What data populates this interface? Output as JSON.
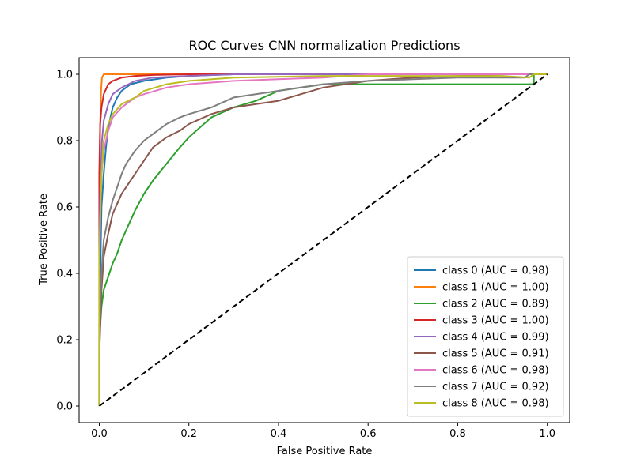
{
  "chart_data": {
    "type": "line",
    "title": "ROC Curves CNN normalization Predictions",
    "xlabel": "False Positive Rate",
    "ylabel": "True Positive Rate",
    "xlim": [
      -0.045,
      1.05
    ],
    "ylim": [
      -0.05,
      1.05
    ],
    "xticks": [
      0.0,
      0.2,
      0.4,
      0.6,
      0.8,
      1.0
    ],
    "xtick_labels": [
      "0.0",
      "0.2",
      "0.4",
      "0.6",
      "0.8",
      "1.0"
    ],
    "yticks": [
      0.0,
      0.2,
      0.4,
      0.6,
      0.8,
      1.0
    ],
    "ytick_labels": [
      "0.0",
      "0.2",
      "0.4",
      "0.6",
      "0.8",
      "1.0"
    ],
    "grid": false,
    "legend_position": "lower-right",
    "reference_line": {
      "label": "",
      "style": "dashed",
      "color": "#000000",
      "x": [
        0,
        1
      ],
      "y": [
        0,
        1
      ]
    },
    "series": [
      {
        "name": "class 0 (AUC = 0.98)",
        "color": "#1f77b4",
        "x": [
          0,
          0.0,
          0.003,
          0.005,
          0.01,
          0.015,
          0.02,
          0.03,
          0.04,
          0.05,
          0.07,
          0.1,
          0.15,
          0.2,
          0.3,
          0.5,
          1.0
        ],
        "y": [
          0,
          0.25,
          0.45,
          0.6,
          0.7,
          0.78,
          0.84,
          0.9,
          0.93,
          0.95,
          0.97,
          0.98,
          0.99,
          0.995,
          1.0,
          1.0,
          1.0
        ]
      },
      {
        "name": "class 1 (AUC = 1.00)",
        "color": "#ff7f0e",
        "x": [
          0,
          0.0,
          0.002,
          0.004,
          0.006,
          0.01,
          0.5,
          1.0
        ],
        "y": [
          0,
          0.6,
          0.85,
          0.95,
          0.99,
          1.0,
          1.0,
          1.0
        ]
      },
      {
        "name": "class 2 (AUC = 0.89)",
        "color": "#2ca02c",
        "x": [
          0,
          0.0,
          0.005,
          0.01,
          0.02,
          0.03,
          0.04,
          0.05,
          0.06,
          0.07,
          0.08,
          0.1,
          0.12,
          0.15,
          0.18,
          0.2,
          0.25,
          0.3,
          0.35,
          0.4,
          0.5,
          0.6,
          0.7,
          0.8,
          0.9,
          0.96,
          0.97,
          0.97,
          1.0
        ],
        "y": [
          0,
          0.2,
          0.3,
          0.35,
          0.39,
          0.43,
          0.46,
          0.5,
          0.53,
          0.56,
          0.59,
          0.64,
          0.68,
          0.73,
          0.78,
          0.81,
          0.87,
          0.9,
          0.92,
          0.95,
          0.97,
          0.97,
          0.97,
          0.97,
          0.97,
          0.97,
          0.97,
          1.0,
          1.0
        ]
      },
      {
        "name": "class 3 (AUC = 1.00)",
        "color": "#d62728",
        "x": [
          0,
          0.0,
          0.002,
          0.005,
          0.01,
          0.02,
          0.03,
          0.05,
          0.08,
          0.12,
          0.2,
          0.5,
          1.0
        ],
        "y": [
          0,
          0.7,
          0.85,
          0.9,
          0.94,
          0.97,
          0.98,
          0.99,
          0.995,
          0.998,
          1.0,
          1.0,
          1.0
        ]
      },
      {
        "name": "class 4 (AUC = 0.99)",
        "color": "#9467bd",
        "x": [
          0,
          0.0,
          0.003,
          0.006,
          0.01,
          0.02,
          0.03,
          0.05,
          0.08,
          0.12,
          0.2,
          0.3,
          0.5,
          1.0
        ],
        "y": [
          0,
          0.5,
          0.7,
          0.8,
          0.86,
          0.91,
          0.94,
          0.96,
          0.98,
          0.99,
          0.995,
          1.0,
          1.0,
          1.0
        ]
      },
      {
        "name": "class 5 (AUC = 0.91)",
        "color": "#8c564b",
        "x": [
          0,
          0.0,
          0.005,
          0.01,
          0.02,
          0.03,
          0.04,
          0.05,
          0.06,
          0.08,
          0.1,
          0.12,
          0.15,
          0.18,
          0.2,
          0.25,
          0.3,
          0.35,
          0.4,
          0.45,
          0.5,
          0.6,
          0.7,
          0.8,
          0.9,
          1.0
        ],
        "y": [
          0,
          0.15,
          0.35,
          0.45,
          0.52,
          0.58,
          0.61,
          0.64,
          0.66,
          0.7,
          0.74,
          0.78,
          0.81,
          0.83,
          0.85,
          0.88,
          0.9,
          0.91,
          0.92,
          0.94,
          0.96,
          0.98,
          0.99,
          0.995,
          1.0,
          1.0
        ]
      },
      {
        "name": "class 6 (AUC = 0.98)",
        "color": "#e377c2",
        "x": [
          0,
          0.0,
          0.003,
          0.005,
          0.01,
          0.02,
          0.03,
          0.05,
          0.08,
          0.1,
          0.15,
          0.2,
          0.3,
          0.4,
          0.5,
          0.6,
          1.0
        ],
        "y": [
          0,
          0.4,
          0.6,
          0.7,
          0.77,
          0.83,
          0.87,
          0.9,
          0.93,
          0.94,
          0.96,
          0.97,
          0.98,
          0.985,
          0.99,
          1.0,
          1.0
        ]
      },
      {
        "name": "class 7 (AUC = 0.92)",
        "color": "#7f7f7f",
        "x": [
          0,
          0.0,
          0.005,
          0.01,
          0.02,
          0.03,
          0.04,
          0.05,
          0.06,
          0.08,
          0.1,
          0.12,
          0.15,
          0.18,
          0.2,
          0.25,
          0.3,
          0.4,
          0.5,
          0.6,
          0.7,
          0.8,
          0.9,
          0.95,
          0.96,
          1.0
        ],
        "y": [
          0,
          0.2,
          0.4,
          0.5,
          0.57,
          0.62,
          0.66,
          0.7,
          0.73,
          0.77,
          0.8,
          0.82,
          0.85,
          0.87,
          0.88,
          0.9,
          0.93,
          0.95,
          0.97,
          0.98,
          0.985,
          0.99,
          0.99,
          0.99,
          1.0,
          1.0
        ]
      },
      {
        "name": "class 8 (AUC = 0.98)",
        "color": "#bcbd22",
        "x": [
          0,
          0.0,
          0.003,
          0.006,
          0.01,
          0.02,
          0.03,
          0.05,
          0.08,
          0.1,
          0.15,
          0.2,
          0.3,
          0.5,
          0.7,
          0.9,
          0.96,
          0.97,
          1.0
        ],
        "y": [
          0,
          0.45,
          0.62,
          0.72,
          0.8,
          0.85,
          0.88,
          0.91,
          0.93,
          0.95,
          0.97,
          0.98,
          0.99,
          0.995,
          0.995,
          0.995,
          0.99,
          1.0,
          1.0
        ]
      }
    ]
  }
}
